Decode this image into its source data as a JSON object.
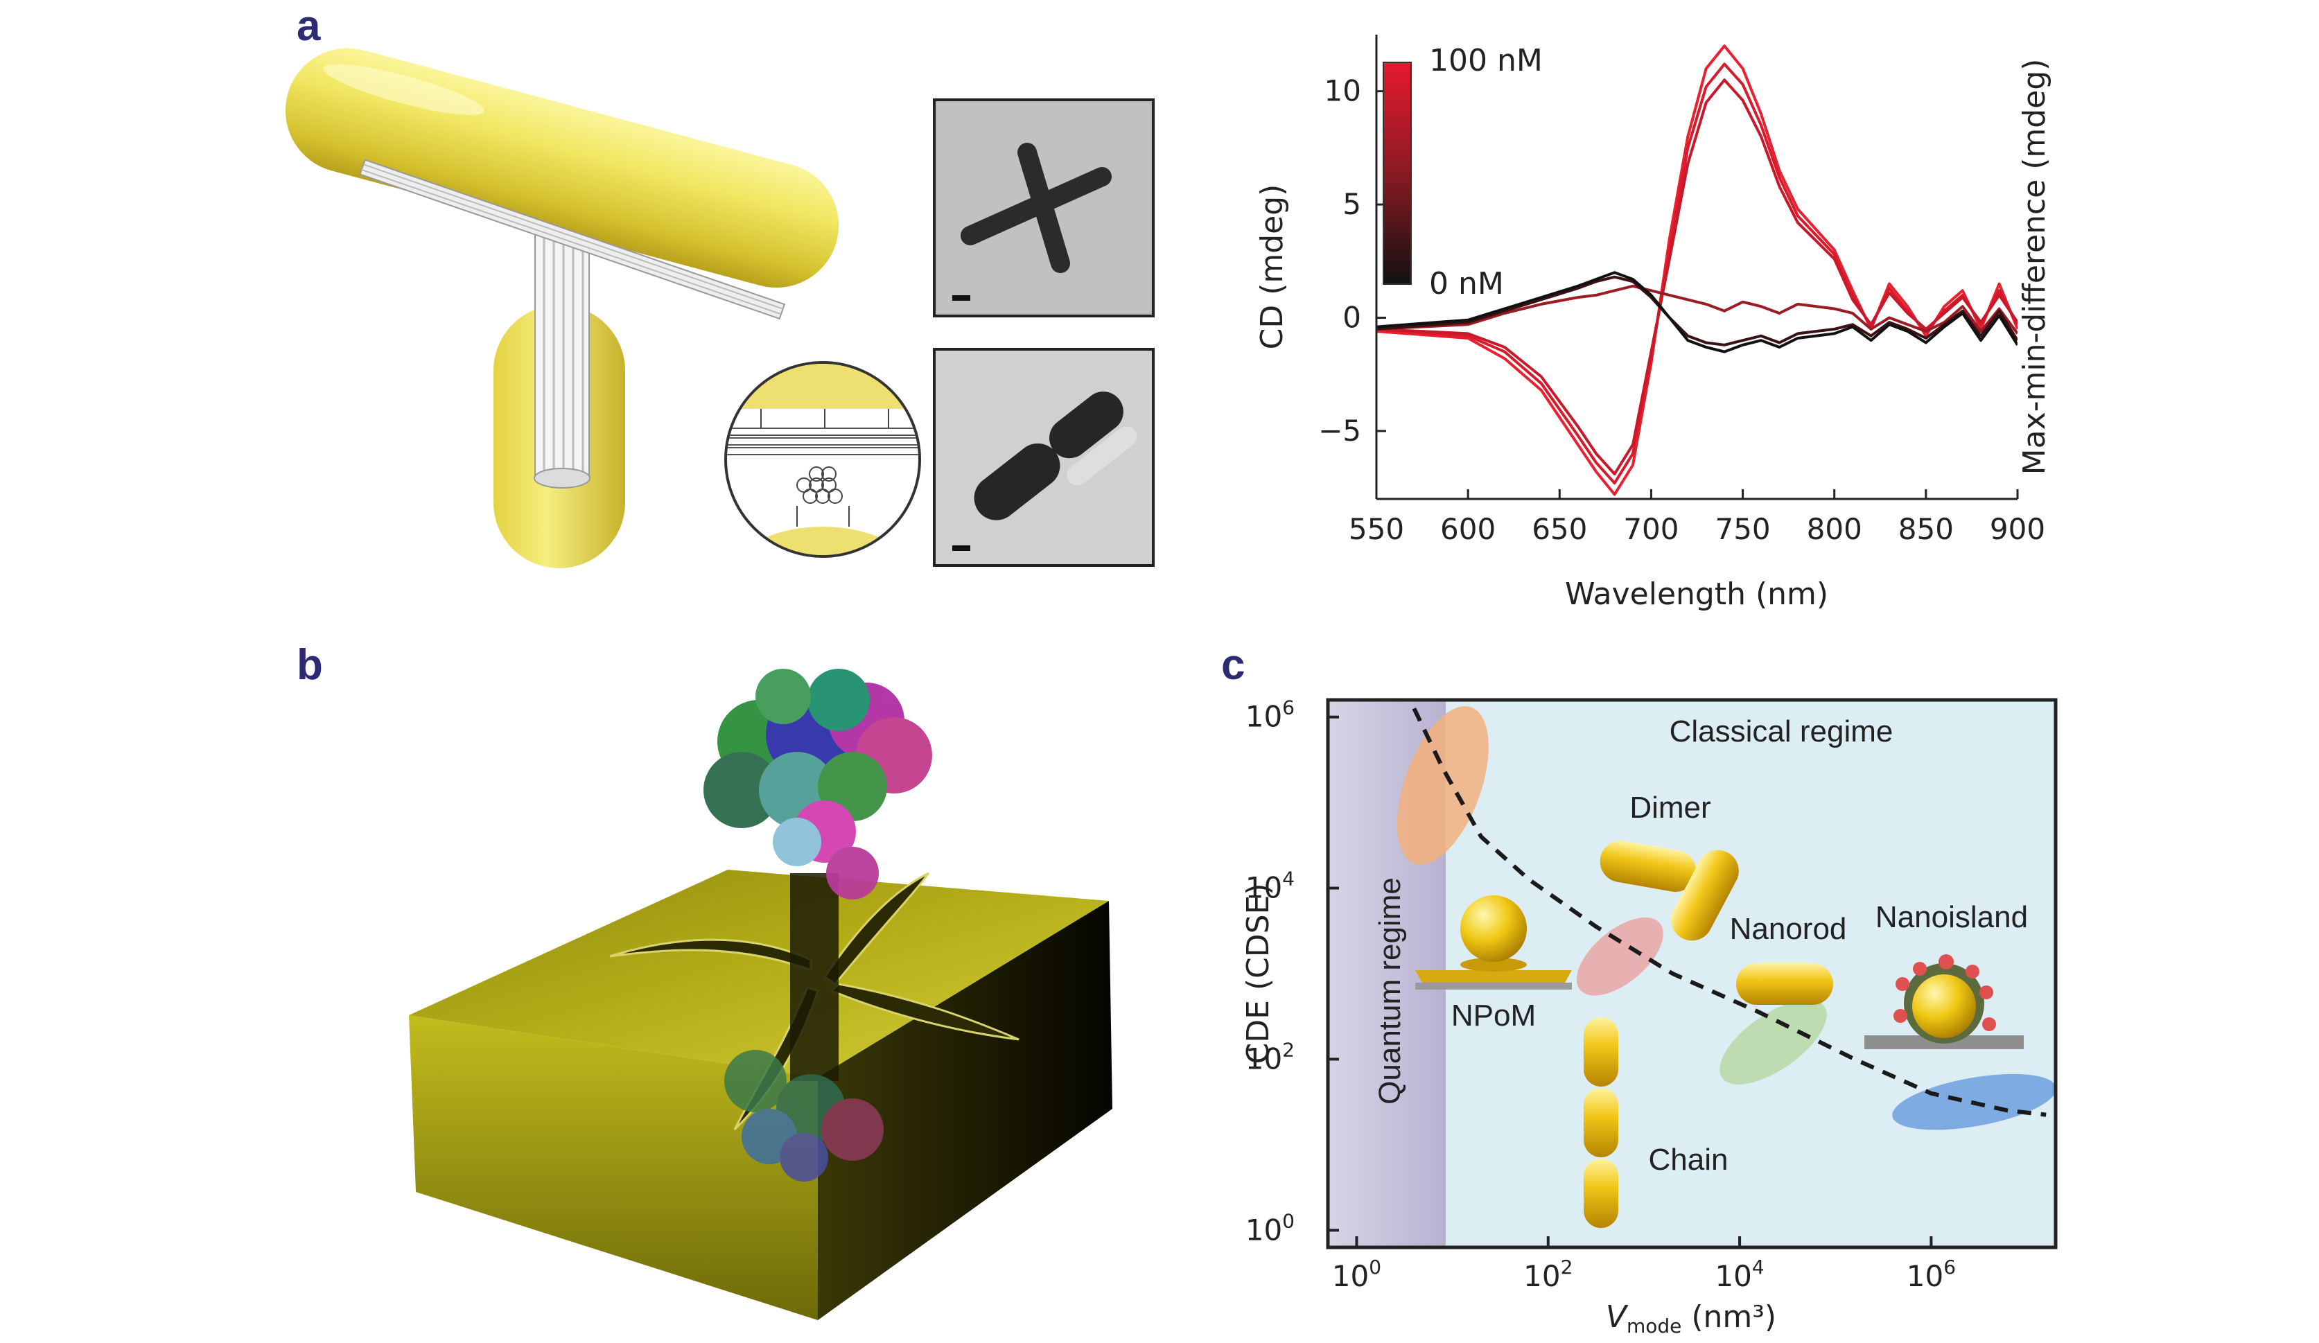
{
  "panels": {
    "a": {
      "letter": "a"
    },
    "b": {
      "letter": "b"
    },
    "c": {
      "letter": "c"
    }
  },
  "chart_data": [
    {
      "type": "line",
      "xlabel": "Wavelength (nm)",
      "ylabel": "CD (mdeg)",
      "ylabel_right": "Max-min-difference (mdeg)",
      "xlim": [
        550,
        900
      ],
      "ylim": [
        -8,
        12.5
      ],
      "xticks": [
        550,
        600,
        650,
        700,
        750,
        800,
        850,
        900
      ],
      "yticks": [
        -5,
        0,
        5,
        10
      ],
      "ytick_labels": [
        "−5",
        "0",
        "5",
        "10"
      ],
      "colorbar": {
        "max_label": "100 nM",
        "min_label": "0 nM",
        "colors": [
          "#e6192e",
          "#111111"
        ]
      },
      "x": [
        550,
        600,
        620,
        640,
        660,
        670,
        680,
        690,
        700,
        710,
        720,
        730,
        740,
        750,
        760,
        770,
        780,
        800,
        810,
        820,
        830,
        840,
        850,
        860,
        870,
        880,
        890,
        900
      ],
      "series": [
        {
          "color": "#e8202f",
          "values": [
            -0.6,
            -0.9,
            -1.8,
            -3.2,
            -5.6,
            -6.8,
            -7.8,
            -6.5,
            -2.0,
            3.5,
            8.0,
            11.0,
            12.0,
            11.0,
            9.0,
            6.5,
            4.8,
            3.0,
            1.2,
            -0.5,
            1.5,
            0.5,
            -0.8,
            0.5,
            1.2,
            -0.5,
            1.5,
            -0.5
          ]
        },
        {
          "color": "#d81b2b",
          "values": [
            -0.5,
            -0.8,
            -1.5,
            -2.9,
            -5.2,
            -6.4,
            -7.3,
            -6.0,
            -1.8,
            3.0,
            7.5,
            10.2,
            11.2,
            10.3,
            8.5,
            6.2,
            4.5,
            2.8,
            1.0,
            -0.4,
            1.3,
            0.3,
            -0.6,
            0.3,
            1.0,
            -0.3,
            1.2,
            -0.3
          ]
        },
        {
          "color": "#c8182a",
          "values": [
            -0.5,
            -0.7,
            -1.3,
            -2.6,
            -4.8,
            -6.0,
            -6.9,
            -5.6,
            -1.5,
            2.6,
            6.8,
            9.5,
            10.5,
            9.6,
            8.0,
            5.8,
            4.2,
            2.6,
            0.8,
            -0.3,
            1.1,
            0.2,
            -0.5,
            0.2,
            0.9,
            -0.2,
            1.0,
            -0.2
          ]
        },
        {
          "color": "#9b1c24",
          "values": [
            -0.5,
            -0.3,
            0.2,
            0.6,
            0.9,
            1.0,
            1.2,
            1.4,
            1.2,
            1.0,
            0.8,
            0.6,
            0.3,
            0.7,
            0.5,
            0.2,
            0.6,
            0.4,
            0.2,
            -0.5,
            0.0,
            -0.3,
            -0.6,
            -0.2,
            0.5,
            -0.6,
            0.4,
            -0.7
          ]
        },
        {
          "color": "#3a1114",
          "values": [
            -0.5,
            -0.2,
            0.3,
            0.8,
            1.3,
            1.6,
            1.8,
            1.6,
            0.9,
            0.0,
            -0.8,
            -1.1,
            -1.2,
            -1.0,
            -0.8,
            -1.1,
            -0.7,
            -0.5,
            -0.3,
            -0.8,
            -0.2,
            -0.5,
            -0.9,
            -0.3,
            0.3,
            -0.8,
            0.3,
            -1.0
          ]
        },
        {
          "color": "#111111",
          "values": [
            -0.4,
            -0.1,
            0.4,
            0.9,
            1.4,
            1.7,
            2.0,
            1.7,
            1.0,
            0.0,
            -1.0,
            -1.3,
            -1.5,
            -1.2,
            -1.0,
            -1.3,
            -0.9,
            -0.7,
            -0.4,
            -1.0,
            -0.3,
            -0.6,
            -1.1,
            -0.4,
            0.2,
            -1.0,
            0.1,
            -1.2
          ]
        }
      ]
    },
    {
      "type": "scatter",
      "xlabel_main": "V",
      "xlabel_sub": "mode",
      "xlabel_unit": " (nm³)",
      "ylabel": "CDE (CDSE)",
      "x_log": true,
      "y_log": true,
      "xlim_exp": [
        -0.3,
        7.3
      ],
      "ylim_exp": [
        -0.2,
        6.2
      ],
      "xticks_exp": [
        0,
        2,
        4,
        6
      ],
      "yticks_exp": [
        0,
        2,
        4,
        6
      ],
      "tick_base": "10",
      "regions": {
        "classical": "Classical regime",
        "quantum": "Quantum regime"
      },
      "trend_exp": [
        [
          0.6,
          6.1
        ],
        [
          0.9,
          5.4
        ],
        [
          1.3,
          4.6
        ],
        [
          1.8,
          4.1
        ],
        [
          2.5,
          3.55
        ],
        [
          3.3,
          3.0
        ],
        [
          4.2,
          2.55
        ],
        [
          5.2,
          2.0
        ],
        [
          6.0,
          1.6
        ],
        [
          6.8,
          1.4
        ],
        [
          7.2,
          1.35
        ]
      ],
      "structures": [
        {
          "name": "NPoM",
          "x_exp": 1.05,
          "y_exp": 3.95
        },
        {
          "name": "Dimer",
          "x_exp": 3.2,
          "y_exp": 4.55
        },
        {
          "name": "Nanorod",
          "x_exp": 4.35,
          "y_exp": 3.08
        },
        {
          "name": "Nanoisland",
          "x_exp": 6.2,
          "y_exp": 2.95
        },
        {
          "name": "Chain",
          "x_exp": 2.5,
          "y_exp": 1.4
        }
      ],
      "ellipses": [
        {
          "color": "#f2b07d",
          "x_exp": 0.9,
          "y_exp": 5.2
        },
        {
          "color": "#e9a6a6",
          "x_exp": 2.75,
          "y_exp": 3.2
        },
        {
          "color": "#b9d8a4",
          "x_exp": 4.35,
          "y_exp": 2.2
        },
        {
          "color": "#6d9fde",
          "x_exp": 6.45,
          "y_exp": 1.5
        }
      ]
    }
  ]
}
